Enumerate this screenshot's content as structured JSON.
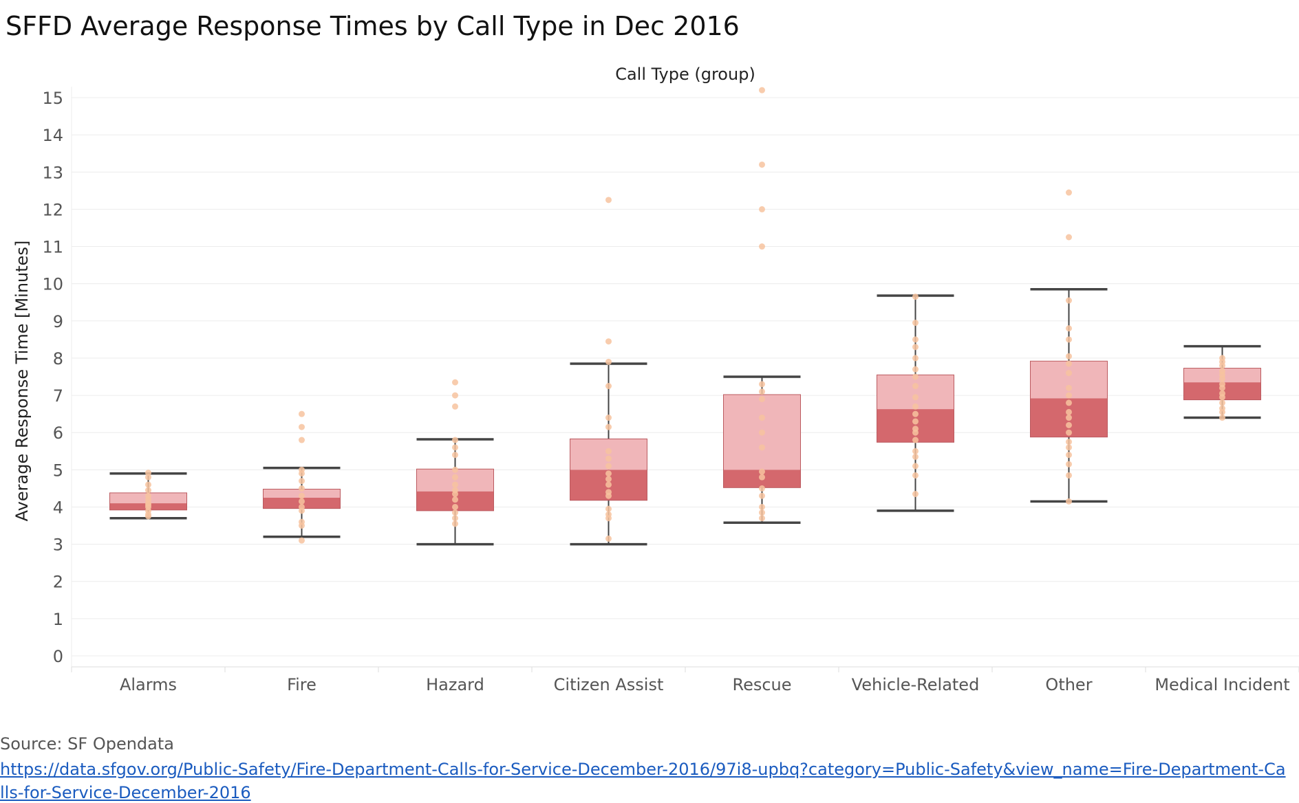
{
  "title": "SFFD Average Response Times by Call Type in Dec 2016",
  "footer": {
    "source_label": "Source: SF Opendata",
    "source_url": "https://data.sfgov.org/Public-Safety/Fire-Department-Calls-for-Service-December-2016/97i8-upbq?category=Public-Safety&view_name=Fire-Department-Calls-for-Service-December-2016"
  },
  "colors": {
    "box_upper": "#f0b6b9",
    "box_lower": "#d4686d",
    "whisker": "#444444",
    "point": "#f7c39f",
    "grid": "#ececec",
    "axis_text": "#555555"
  },
  "chart_data": {
    "type": "box",
    "title": "SFFD Average Response Times by Call Type in Dec 2016",
    "column_header": "Call Type (group)",
    "ylabel": "Average Response Time [Minutes]",
    "xlabel": "",
    "ylim": [
      0,
      15.3
    ],
    "yticks": [
      0,
      1,
      2,
      3,
      4,
      5,
      6,
      7,
      8,
      9,
      10,
      11,
      12,
      13,
      14,
      15
    ],
    "grid": true,
    "categories": [
      "Alarms",
      "Fire",
      "Hazard",
      "Citizen Assist",
      "Rescue",
      "Vehicle-Related",
      "Other",
      "Medical Incident"
    ],
    "boxes": [
      {
        "category": "Alarms",
        "whisker_low": 3.7,
        "q1": 3.92,
        "median": 4.1,
        "q3": 4.38,
        "whisker_high": 4.9,
        "points": [
          3.75,
          3.8,
          3.9,
          4.0,
          4.05,
          4.1,
          4.2,
          4.3,
          4.45,
          4.6,
          4.8,
          4.92
        ]
      },
      {
        "category": "Fire",
        "whisker_low": 3.2,
        "q1": 3.96,
        "median": 4.25,
        "q3": 4.48,
        "whisker_high": 5.05,
        "points": [
          3.1,
          3.5,
          3.6,
          3.9,
          4.0,
          4.15,
          4.3,
          4.5,
          4.7,
          4.9,
          5.0,
          5.8,
          6.15,
          6.5
        ]
      },
      {
        "category": "Hazard",
        "whisker_low": 3.0,
        "q1": 3.9,
        "median": 4.42,
        "q3": 5.02,
        "whisker_high": 5.82,
        "points": [
          3.55,
          3.7,
          3.85,
          4.0,
          4.2,
          4.35,
          4.45,
          4.6,
          4.8,
          5.0,
          5.4,
          5.6,
          5.8,
          6.7,
          7.0,
          7.35
        ]
      },
      {
        "category": "Citizen Assist",
        "whisker_low": 3.0,
        "q1": 4.18,
        "median": 5.0,
        "q3": 5.83,
        "whisker_high": 7.85,
        "points": [
          3.15,
          3.7,
          3.8,
          3.95,
          4.3,
          4.4,
          4.6,
          4.75,
          4.9,
          5.1,
          5.3,
          5.5,
          6.15,
          6.4,
          7.25,
          7.9,
          8.45,
          12.25
        ]
      },
      {
        "category": "Rescue",
        "whisker_low": 3.58,
        "q1": 4.52,
        "median": 5.0,
        "q3": 7.02,
        "whisker_high": 7.5,
        "points": [
          3.7,
          3.85,
          4.0,
          4.3,
          4.5,
          4.8,
          4.95,
          5.6,
          6.0,
          6.4,
          6.9,
          7.1,
          7.3,
          11.0,
          12.0,
          13.2,
          15.2
        ]
      },
      {
        "category": "Vehicle-Related",
        "whisker_low": 3.9,
        "q1": 5.74,
        "median": 6.63,
        "q3": 7.55,
        "whisker_high": 9.68,
        "points": [
          4.35,
          4.85,
          5.1,
          5.35,
          5.5,
          5.8,
          6.0,
          6.1,
          6.3,
          6.5,
          6.7,
          6.95,
          7.25,
          7.5,
          7.7,
          8.0,
          8.3,
          8.5,
          8.95,
          9.65
        ]
      },
      {
        "category": "Other",
        "whisker_low": 4.15,
        "q1": 5.88,
        "median": 6.92,
        "q3": 7.92,
        "whisker_high": 9.85,
        "points": [
          4.15,
          4.85,
          5.15,
          5.4,
          5.6,
          5.75,
          6.0,
          6.2,
          6.4,
          6.55,
          6.8,
          7.0,
          7.2,
          7.6,
          7.85,
          8.05,
          8.5,
          8.8,
          9.55,
          11.25,
          12.45
        ]
      },
      {
        "category": "Medical Incident",
        "whisker_low": 6.4,
        "q1": 6.88,
        "median": 7.35,
        "q3": 7.73,
        "whisker_high": 8.32,
        "points": [
          6.4,
          6.55,
          6.65,
          6.8,
          6.95,
          7.05,
          7.2,
          7.3,
          7.45,
          7.55,
          7.65,
          7.8,
          7.9,
          8.0
        ]
      }
    ]
  }
}
